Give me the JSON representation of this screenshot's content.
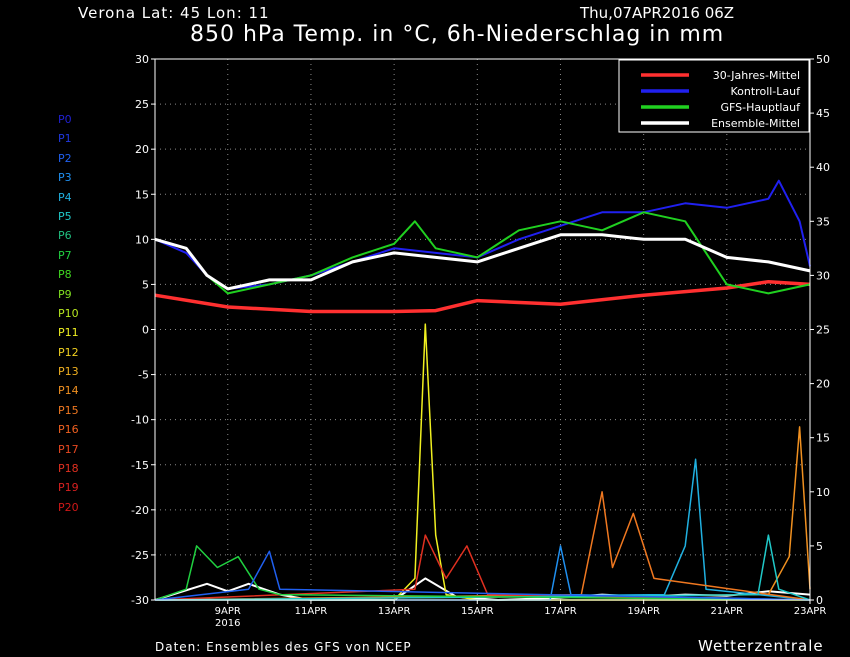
{
  "header": {
    "station": "Verona   Lat: 45 Lon: 11",
    "datetime": "Thu,07APR2016 06Z",
    "title": "850 hPa Temp. in °C, 6h-Niederschlag in mm"
  },
  "footer": {
    "source": "Daten: Ensembles des GFS von NCEP",
    "brand": "Wetterzentrale"
  },
  "members": [
    {
      "label": "P0",
      "color": "#2020d0"
    },
    {
      "label": "P1",
      "color": "#2038e0"
    },
    {
      "label": "P2",
      "color": "#2060f0"
    },
    {
      "label": "P3",
      "color": "#2090f0"
    },
    {
      "label": "P4",
      "color": "#20b0e0"
    },
    {
      "label": "P5",
      "color": "#20c8c8"
    },
    {
      "label": "P6",
      "color": "#20c080"
    },
    {
      "label": "P7",
      "color": "#20d040"
    },
    {
      "label": "P8",
      "color": "#40d820"
    },
    {
      "label": "P9",
      "color": "#80e020"
    },
    {
      "label": "P10",
      "color": "#b8e820"
    },
    {
      "label": "P11",
      "color": "#f0f020"
    },
    {
      "label": "P12",
      "color": "#f0d020"
    },
    {
      "label": "P13",
      "color": "#f0b020"
    },
    {
      "label": "P14",
      "color": "#f09020"
    },
    {
      "label": "P15",
      "color": "#f07820"
    },
    {
      "label": "P16",
      "color": "#f06020"
    },
    {
      "label": "P17",
      "color": "#e84820"
    },
    {
      "label": "P18",
      "color": "#e03020"
    },
    {
      "label": "P19",
      "color": "#d82020"
    },
    {
      "label": "P20",
      "color": "#d01818"
    }
  ],
  "chart_data": {
    "type": "line",
    "title": "850 hPa Temp. in °C, 6h-Niederschlag in mm",
    "x_start": "2016-04-07 06Z",
    "x_end": "2016-04-23 00Z",
    "x_ticks": [
      {
        "label": "9APR",
        "sub": "2016",
        "x": "2016-04-09 00Z"
      },
      {
        "label": "11APR",
        "sub": "",
        "x": "2016-04-11 00Z"
      },
      {
        "label": "13APR",
        "sub": "",
        "x": "2016-04-13 00Z"
      },
      {
        "label": "15APR",
        "sub": "",
        "x": "2016-04-15 00Z"
      },
      {
        "label": "17APR",
        "sub": "",
        "x": "2016-04-17 00Z"
      },
      {
        "label": "19APR",
        "sub": "",
        "x": "2016-04-19 00Z"
      },
      {
        "label": "21APR",
        "sub": "",
        "x": "2016-04-21 00Z"
      },
      {
        "label": "23APR",
        "sub": "",
        "x": "2016-04-23 00Z"
      }
    ],
    "y_left": {
      "label": "850 hPa Temp. in °C",
      "range": [
        -30,
        30
      ],
      "ticks": [
        30,
        25,
        20,
        15,
        10,
        5,
        0,
        -5,
        -10,
        -15,
        -20,
        -25,
        -30
      ]
    },
    "y_right": {
      "label": "6h-Niederschlag in mm",
      "range": [
        0,
        50
      ],
      "ticks": [
        50,
        45,
        40,
        35,
        30,
        25,
        20,
        15,
        10,
        5,
        0
      ]
    },
    "grid": true,
    "legend_position": "top-right",
    "legend": [
      {
        "name": "30-Jahres-Mittel",
        "color": "#ff3030"
      },
      {
        "name": "Kontroll-Lauf",
        "color": "#2020f0"
      },
      {
        "name": "GFS-Hauptlauf",
        "color": "#20d020"
      },
      {
        "name": "Ensemble-Mittel",
        "color": "#ffffff"
      }
    ],
    "temperature_series": [
      {
        "name": "30-Jahres-Mittel",
        "color": "#ff3030",
        "width": 3.5,
        "x": [
          "2016-04-07 06Z",
          "2016-04-09 00Z",
          "2016-04-11 00Z",
          "2016-04-13 00Z",
          "2016-04-14 00Z",
          "2016-04-15 00Z",
          "2016-04-17 00Z",
          "2016-04-19 00Z",
          "2016-04-21 00Z",
          "2016-04-22 00Z",
          "2016-04-23 00Z"
        ],
        "y": [
          3.8,
          2.5,
          2.0,
          2.0,
          2.1,
          3.2,
          2.8,
          3.8,
          4.6,
          5.3,
          5.0
        ]
      },
      {
        "name": "Kontroll-Lauf",
        "color": "#2020f0",
        "width": 2,
        "x": [
          "2016-04-07 06Z",
          "2016-04-08 00Z",
          "2016-04-08 12Z",
          "2016-04-09 00Z",
          "2016-04-10 00Z",
          "2016-04-11 00Z",
          "2016-04-12 00Z",
          "2016-04-13 00Z",
          "2016-04-14 00Z",
          "2016-04-15 00Z",
          "2016-04-16 00Z",
          "2016-04-17 00Z",
          "2016-04-18 00Z",
          "2016-04-19 00Z",
          "2016-04-20 00Z",
          "2016-04-21 00Z",
          "2016-04-22 00Z",
          "2016-04-22 06Z",
          "2016-04-22 18Z",
          "2016-04-23 00Z"
        ],
        "y": [
          10,
          8.5,
          6,
          4.5,
          5,
          6,
          7.5,
          9,
          8.5,
          8,
          10,
          11.5,
          13,
          13,
          14,
          13.5,
          14.5,
          16.5,
          12,
          7
        ]
      },
      {
        "name": "GFS-Hauptlauf",
        "color": "#20d020",
        "width": 2,
        "x": [
          "2016-04-07 06Z",
          "2016-04-08 00Z",
          "2016-04-08 12Z",
          "2016-04-09 00Z",
          "2016-04-10 00Z",
          "2016-04-11 00Z",
          "2016-04-12 00Z",
          "2016-04-13 00Z",
          "2016-04-13 12Z",
          "2016-04-14 00Z",
          "2016-04-15 00Z",
          "2016-04-16 00Z",
          "2016-04-17 00Z",
          "2016-04-18 00Z",
          "2016-04-19 00Z",
          "2016-04-20 00Z",
          "2016-04-21 00Z",
          "2016-04-22 00Z",
          "2016-04-23 00Z"
        ],
        "y": [
          10,
          9,
          6,
          4,
          5,
          6,
          8,
          9.5,
          12,
          9,
          8,
          11,
          12,
          11,
          13,
          12,
          5,
          4,
          5
        ]
      },
      {
        "name": "Ensemble-Mittel",
        "color": "#ffffff",
        "width": 3,
        "x": [
          "2016-04-07 06Z",
          "2016-04-08 00Z",
          "2016-04-08 12Z",
          "2016-04-09 00Z",
          "2016-04-10 00Z",
          "2016-04-11 00Z",
          "2016-04-12 00Z",
          "2016-04-13 00Z",
          "2016-04-14 00Z",
          "2016-04-15 00Z",
          "2016-04-16 00Z",
          "2016-04-17 00Z",
          "2016-04-18 00Z",
          "2016-04-19 00Z",
          "2016-04-20 00Z",
          "2016-04-21 00Z",
          "2016-04-22 00Z",
          "2016-04-23 00Z"
        ],
        "y": [
          10,
          9,
          6,
          4.5,
          5.5,
          5.5,
          7.5,
          8.5,
          8,
          7.5,
          9,
          10.5,
          10.5,
          10,
          10,
          8,
          7.5,
          6.5
        ]
      }
    ],
    "precipitation_series": [
      {
        "name": "Ensemble-Mittel",
        "color": "#ffffff",
        "width": 2,
        "x": [
          "2016-04-07 06Z",
          "2016-04-08 12Z",
          "2016-04-09 00Z",
          "2016-04-09 12Z",
          "2016-04-10 06Z",
          "2016-04-11 00Z",
          "2016-04-13 00Z",
          "2016-04-13 18Z",
          "2016-04-14 12Z",
          "2016-04-15 12Z",
          "2016-04-17 00Z",
          "2016-04-18 00Z",
          "2016-04-19 00Z",
          "2016-04-20 00Z",
          "2016-04-21 00Z",
          "2016-04-22 00Z",
          "2016-04-23 00Z"
        ],
        "y": [
          0,
          1.5,
          0.8,
          1.5,
          0.5,
          0,
          0,
          2,
          0.3,
          0,
          0.2,
          0.5,
          0.3,
          0.5,
          0.4,
          0.8,
          0.5
        ]
      },
      {
        "name": "P11",
        "color": "#f0f020",
        "width": 1.5,
        "x": [
          "2016-04-07 06Z",
          "2016-04-13 00Z",
          "2016-04-13 12Z",
          "2016-04-13 18Z",
          "2016-04-14 00Z",
          "2016-04-14 06Z",
          "2016-04-15 00Z",
          "2016-04-23 00Z"
        ],
        "y": [
          0,
          0,
          2,
          25.5,
          6,
          0.5,
          0,
          0
        ]
      },
      {
        "name": "P14",
        "color": "#f09020",
        "width": 1.5,
        "x": [
          "2016-04-07 06Z",
          "2016-04-22 00Z",
          "2016-04-22 12Z",
          "2016-04-22 18Z",
          "2016-04-23 00Z"
        ],
        "y": [
          0,
          0.5,
          4,
          16,
          1
        ]
      },
      {
        "name": "P4",
        "color": "#20b0e0",
        "width": 1.5,
        "x": [
          "2016-04-07 06Z",
          "2016-04-19 12Z",
          "2016-04-20 00Z",
          "2016-04-20 06Z",
          "2016-04-20 12Z",
          "2016-04-23 00Z"
        ],
        "y": [
          0,
          0.5,
          5,
          13,
          1,
          0
        ]
      },
      {
        "name": "P15",
        "color": "#f07820",
        "width": 1.5,
        "x": [
          "2016-04-07 06Z",
          "2016-04-17 12Z",
          "2016-04-18 00Z",
          "2016-04-18 06Z",
          "2016-04-18 18Z",
          "2016-04-19 06Z",
          "2016-04-23 00Z"
        ],
        "y": [
          0,
          0.5,
          10,
          3,
          8,
          2,
          0
        ]
      },
      {
        "name": "P3",
        "color": "#2090f0",
        "width": 1.5,
        "x": [
          "2016-04-07 06Z",
          "2016-04-16 18Z",
          "2016-04-17 00Z",
          "2016-04-17 06Z",
          "2016-04-23 00Z"
        ],
        "y": [
          0,
          0,
          5,
          0.5,
          0
        ]
      },
      {
        "name": "P18",
        "color": "#e03020",
        "width": 1.5,
        "x": [
          "2016-04-07 06Z",
          "2016-04-13 12Z",
          "2016-04-13 18Z",
          "2016-04-14 06Z",
          "2016-04-14 18Z",
          "2016-04-15 06Z",
          "2016-04-23 00Z"
        ],
        "y": [
          0,
          1,
          6,
          2,
          5,
          0.5,
          0
        ]
      },
      {
        "name": "P5",
        "color": "#20c8c8",
        "width": 1.5,
        "x": [
          "2016-04-07 06Z",
          "2016-04-21 18Z",
          "2016-04-22 00Z",
          "2016-04-22 06Z",
          "2016-04-23 00Z"
        ],
        "y": [
          0,
          0.5,
          6,
          1,
          0
        ]
      },
      {
        "name": "P7",
        "color": "#20d040",
        "width": 1.5,
        "x": [
          "2016-04-07 06Z",
          "2016-04-08 00Z",
          "2016-04-08 06Z",
          "2016-04-08 18Z",
          "2016-04-09 06Z",
          "2016-04-09 18Z",
          "2016-04-10 06Z",
          "2016-04-23 00Z"
        ],
        "y": [
          0,
          1,
          5,
          3,
          4,
          1,
          0.5,
          0
        ]
      },
      {
        "name": "P2",
        "color": "#2060f0",
        "width": 1.5,
        "x": [
          "2016-04-07 06Z",
          "2016-04-09 12Z",
          "2016-04-10 00Z",
          "2016-04-10 06Z",
          "2016-04-23 00Z"
        ],
        "y": [
          0,
          1,
          4.5,
          1,
          0
        ]
      }
    ]
  }
}
